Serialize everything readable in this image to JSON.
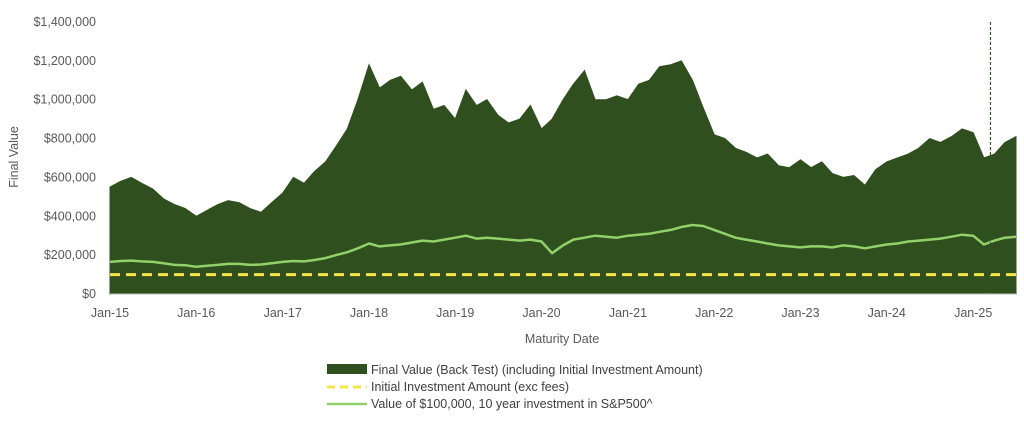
{
  "chart_data": {
    "type": "area",
    "title": "",
    "xlabel": "Maturity Date",
    "ylabel": "Final Value",
    "ylim": [
      0,
      1400000
    ],
    "xlim": [
      "2015-01-01",
      "2025-07-01"
    ],
    "y_ticks": [
      0,
      200000,
      400000,
      600000,
      800000,
      1000000,
      1200000,
      1400000
    ],
    "y_tick_labels": [
      "$0",
      "$200,000",
      "$400,000",
      "$600,000",
      "$800,000",
      "$1,000,000",
      "$1,200,000",
      "$1,400,000"
    ],
    "x_ticks": [
      "2015-01-01",
      "2016-01-01",
      "2017-01-01",
      "2018-01-01",
      "2019-01-01",
      "2020-01-01",
      "2021-01-01",
      "2022-01-01",
      "2023-01-01",
      "2024-01-01",
      "2025-01-01"
    ],
    "x_tick_labels": [
      "Jan-15",
      "Jan-16",
      "Jan-17",
      "Jan-18",
      "Jan-19",
      "Jan-20",
      "Jan-21",
      "Jan-22",
      "Jan-23",
      "Jan-24",
      "Jan-25"
    ],
    "grid": false,
    "legend_position": "bottom",
    "vertical_marker_date": "2025-03-15",
    "series": [
      {
        "name": "Final Value (Back Test) (including Initial Investment Amount)",
        "kind": "area",
        "color": "#2f4f1e",
        "x": [
          "2015-01-01",
          "2015-02-15",
          "2015-04-01",
          "2015-05-15",
          "2015-07-01",
          "2015-08-15",
          "2015-10-01",
          "2015-11-15",
          "2016-01-01",
          "2016-02-15",
          "2016-04-01",
          "2016-05-15",
          "2016-07-01",
          "2016-08-15",
          "2016-10-01",
          "2016-11-15",
          "2017-01-01",
          "2017-02-15",
          "2017-04-01",
          "2017-05-15",
          "2017-07-01",
          "2017-08-15",
          "2017-10-01",
          "2017-11-15",
          "2018-01-01",
          "2018-02-15",
          "2018-04-01",
          "2018-05-15",
          "2018-07-01",
          "2018-08-15",
          "2018-10-01",
          "2018-11-15",
          "2019-01-01",
          "2019-02-15",
          "2019-04-01",
          "2019-05-15",
          "2019-07-01",
          "2019-08-15",
          "2019-10-01",
          "2019-11-15",
          "2020-01-01",
          "2020-02-15",
          "2020-04-01",
          "2020-05-15",
          "2020-07-01",
          "2020-08-15",
          "2020-10-01",
          "2020-11-15",
          "2021-01-01",
          "2021-02-15",
          "2021-04-01",
          "2021-05-15",
          "2021-07-01",
          "2021-08-15",
          "2021-10-01",
          "2021-11-15",
          "2022-01-01",
          "2022-02-15",
          "2022-04-01",
          "2022-05-15",
          "2022-07-01",
          "2022-08-15",
          "2022-10-01",
          "2022-11-15",
          "2023-01-01",
          "2023-02-15",
          "2023-04-01",
          "2023-05-15",
          "2023-07-01",
          "2023-08-15",
          "2023-10-01",
          "2023-11-15",
          "2024-01-01",
          "2024-02-15",
          "2024-04-01",
          "2024-05-15",
          "2024-07-01",
          "2024-08-15",
          "2024-10-01",
          "2024-11-15",
          "2025-01-01",
          "2025-02-15",
          "2025-04-01",
          "2025-05-15",
          "2025-07-01"
        ],
        "values": [
          550000,
          580000,
          600000,
          570000,
          540000,
          490000,
          460000,
          440000,
          400000,
          430000,
          460000,
          480000,
          470000,
          440000,
          420000,
          470000,
          520000,
          600000,
          570000,
          630000,
          680000,
          760000,
          850000,
          1000000,
          1180000,
          1060000,
          1100000,
          1120000,
          1050000,
          1090000,
          950000,
          970000,
          900000,
          1050000,
          970000,
          1000000,
          920000,
          880000,
          900000,
          970000,
          850000,
          900000,
          1000000,
          1080000,
          1150000,
          1000000,
          1000000,
          1020000,
          1000000,
          1080000,
          1100000,
          1170000,
          1180000,
          1200000,
          1100000,
          960000,
          820000,
          800000,
          750000,
          730000,
          700000,
          720000,
          660000,
          650000,
          690000,
          650000,
          680000,
          620000,
          600000,
          610000,
          560000,
          640000,
          680000,
          700000,
          720000,
          750000,
          800000,
          780000,
          810000,
          850000,
          830000,
          700000,
          720000,
          780000,
          810000
        ]
      },
      {
        "name": "Initial Investment Amount (exc  fees)",
        "kind": "dashed-line",
        "color": "#f5e642",
        "x": [
          "2015-01-01",
          "2025-07-01"
        ],
        "values": [
          100000,
          100000
        ]
      },
      {
        "name": "Value of $100,000, 10 year investment in S&P500^",
        "kind": "line",
        "color": "#92d16a",
        "x": [
          "2015-01-01",
          "2015-02-15",
          "2015-04-01",
          "2015-05-15",
          "2015-07-01",
          "2015-08-15",
          "2015-10-01",
          "2015-11-15",
          "2016-01-01",
          "2016-02-15",
          "2016-04-01",
          "2016-05-15",
          "2016-07-01",
          "2016-08-15",
          "2016-10-01",
          "2016-11-15",
          "2017-01-01",
          "2017-02-15",
          "2017-04-01",
          "2017-05-15",
          "2017-07-01",
          "2017-08-15",
          "2017-10-01",
          "2017-11-15",
          "2018-01-01",
          "2018-02-15",
          "2018-04-01",
          "2018-05-15",
          "2018-07-01",
          "2018-08-15",
          "2018-10-01",
          "2018-11-15",
          "2019-01-01",
          "2019-02-15",
          "2019-04-01",
          "2019-05-15",
          "2019-07-01",
          "2019-08-15",
          "2019-10-01",
          "2019-11-15",
          "2020-01-01",
          "2020-02-15",
          "2020-04-01",
          "2020-05-15",
          "2020-07-01",
          "2020-08-15",
          "2020-10-01",
          "2020-11-15",
          "2021-01-01",
          "2021-02-15",
          "2021-04-01",
          "2021-05-15",
          "2021-07-01",
          "2021-08-15",
          "2021-10-01",
          "2021-11-15",
          "2022-01-01",
          "2022-02-15",
          "2022-04-01",
          "2022-05-15",
          "2022-07-01",
          "2022-08-15",
          "2022-10-01",
          "2022-11-15",
          "2023-01-01",
          "2023-02-15",
          "2023-04-01",
          "2023-05-15",
          "2023-07-01",
          "2023-08-15",
          "2023-10-01",
          "2023-11-15",
          "2024-01-01",
          "2024-02-15",
          "2024-04-01",
          "2024-05-15",
          "2024-07-01",
          "2024-08-15",
          "2024-10-01",
          "2024-11-15",
          "2025-01-01",
          "2025-02-15",
          "2025-04-01",
          "2025-05-15",
          "2025-07-01"
        ],
        "values": [
          165000,
          170000,
          172000,
          168000,
          165000,
          158000,
          150000,
          148000,
          140000,
          145000,
          150000,
          155000,
          155000,
          150000,
          152000,
          158000,
          165000,
          170000,
          168000,
          175000,
          185000,
          200000,
          215000,
          235000,
          260000,
          245000,
          250000,
          255000,
          265000,
          275000,
          270000,
          280000,
          290000,
          300000,
          285000,
          290000,
          285000,
          280000,
          275000,
          280000,
          270000,
          210000,
          250000,
          280000,
          290000,
          300000,
          295000,
          290000,
          300000,
          305000,
          310000,
          320000,
          330000,
          345000,
          355000,
          350000,
          330000,
          310000,
          290000,
          280000,
          270000,
          260000,
          250000,
          245000,
          240000,
          245000,
          245000,
          240000,
          250000,
          245000,
          235000,
          245000,
          255000,
          260000,
          270000,
          275000,
          280000,
          285000,
          295000,
          305000,
          300000,
          255000,
          275000,
          290000,
          295000
        ]
      }
    ]
  }
}
